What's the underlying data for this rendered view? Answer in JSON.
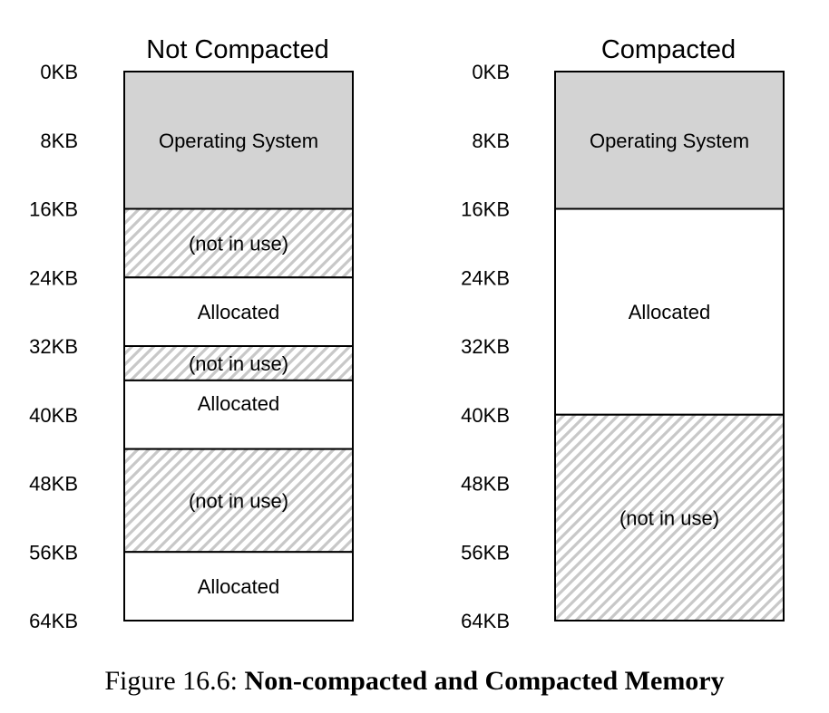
{
  "axis_labels": [
    "0KB",
    "8KB",
    "16KB",
    "24KB",
    "32KB",
    "40KB",
    "48KB",
    "56KB",
    "64KB"
  ],
  "colors": {
    "os_fill": "#d3d3d3",
    "hatch_stripe": "#c8c8c8",
    "outline": "#000000"
  },
  "diagrams": [
    {
      "title": "Not Compacted",
      "segments": [
        {
          "start_kb": 0,
          "end_kb": 16,
          "kind": "os",
          "label": "Operating System"
        },
        {
          "start_kb": 16,
          "end_kb": 24,
          "kind": "free",
          "label": "(not in use)"
        },
        {
          "start_kb": 24,
          "end_kb": 32,
          "kind": "allocated",
          "label": "Allocated"
        },
        {
          "start_kb": 32,
          "end_kb": 36,
          "kind": "free",
          "label": "(not in use)"
        },
        {
          "start_kb": 36,
          "end_kb": 44,
          "kind": "allocated",
          "label": "Allocated"
        },
        {
          "start_kb": 44,
          "end_kb": 56,
          "kind": "free",
          "label": "(not in use)"
        },
        {
          "start_kb": 56,
          "end_kb": 64,
          "kind": "allocated",
          "label": "Allocated"
        }
      ]
    },
    {
      "title": "Compacted",
      "segments": [
        {
          "start_kb": 0,
          "end_kb": 16,
          "kind": "os",
          "label": "Operating System"
        },
        {
          "start_kb": 16,
          "end_kb": 40,
          "kind": "allocated",
          "label": "Allocated"
        },
        {
          "start_kb": 40,
          "end_kb": 64,
          "kind": "free",
          "label": "(not in use)"
        }
      ]
    }
  ],
  "caption": {
    "prefix": "Figure 16.6: ",
    "bold": "Non-compacted and Compacted Memory"
  }
}
